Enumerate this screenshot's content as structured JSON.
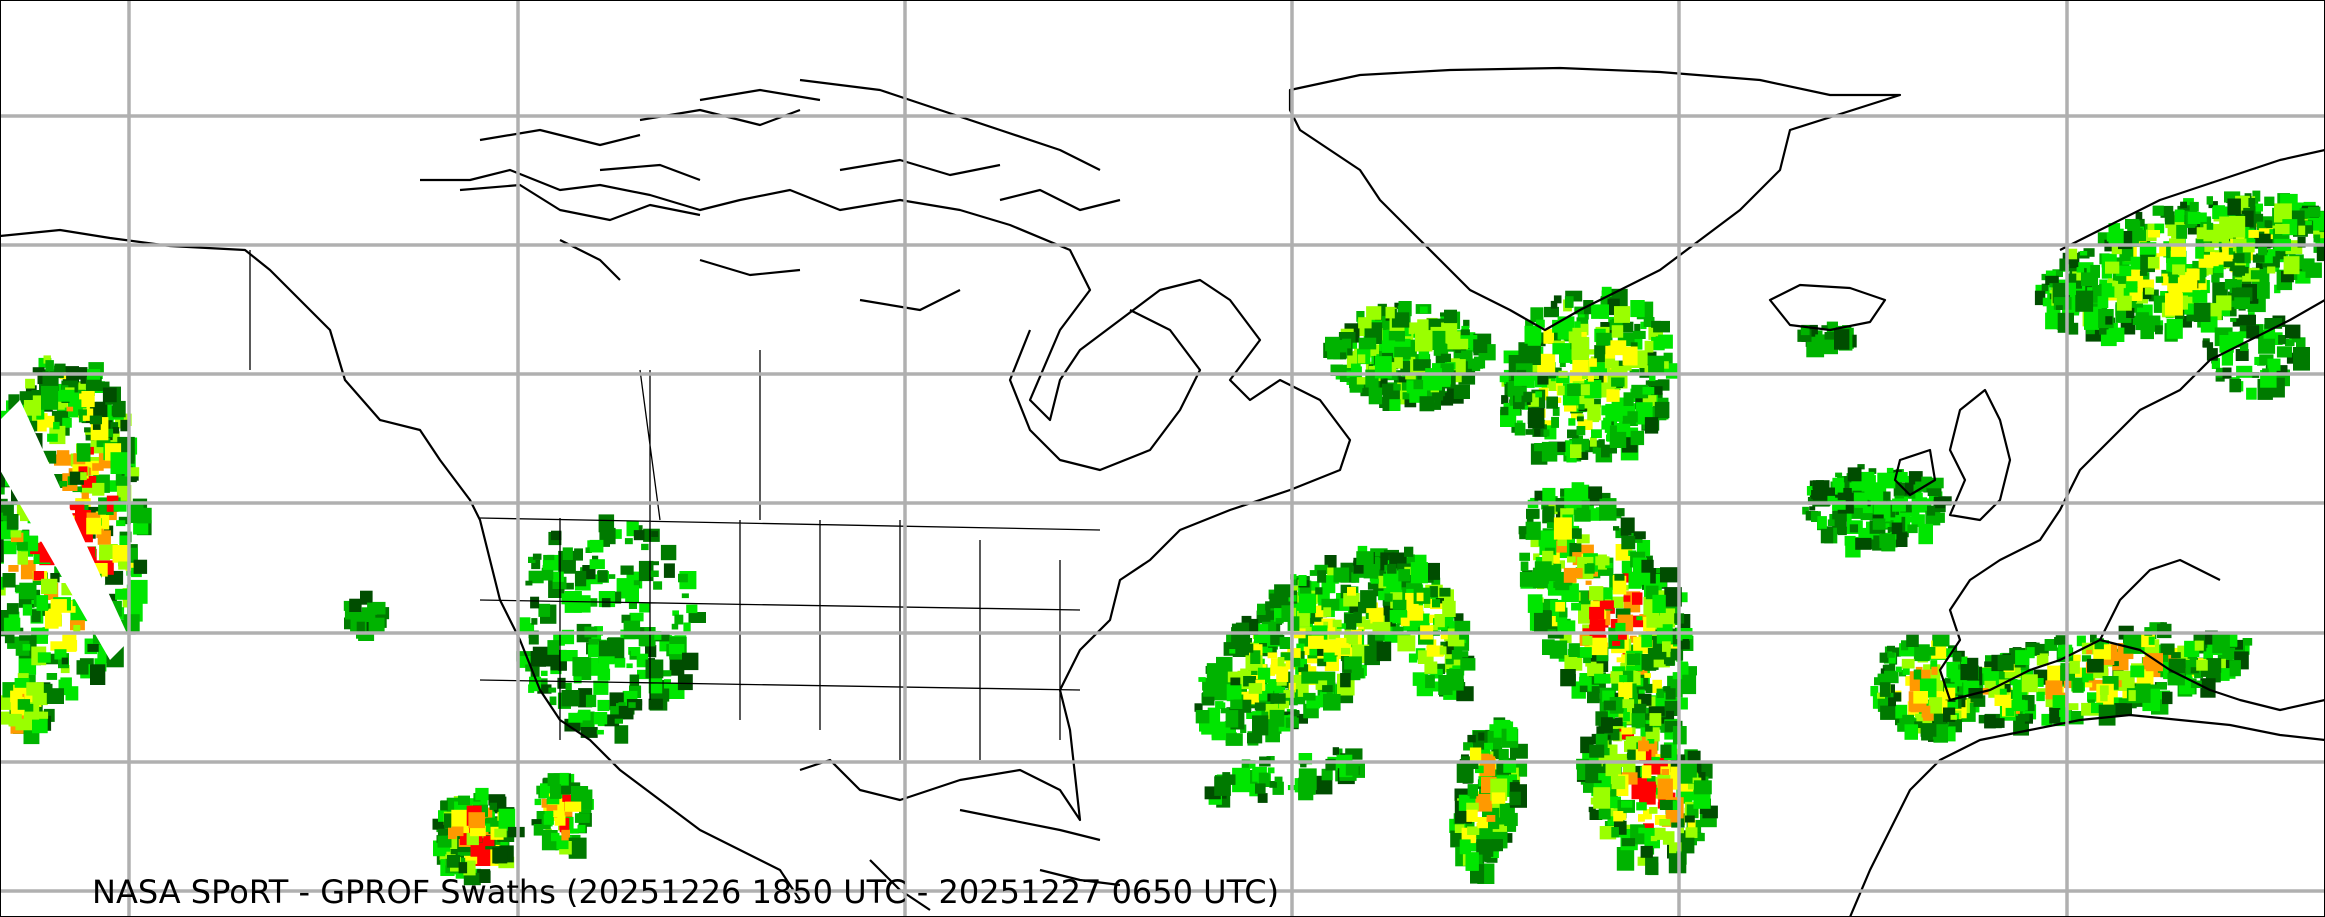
{
  "map": {
    "title": "NASA SPoRT - GPROF Swaths (20251226 1850 UTC - 20251227 0650 UTC)",
    "projection": "equirectangular",
    "gridlines": true,
    "gridline_color": "#b0b0b0",
    "coastline_color": "#000000",
    "precip_colors": [
      "#004d00",
      "#007a00",
      "#00b300",
      "#00e600",
      "#9aff00",
      "#ffff00",
      "#ff9900",
      "#ff0000"
    ]
  }
}
